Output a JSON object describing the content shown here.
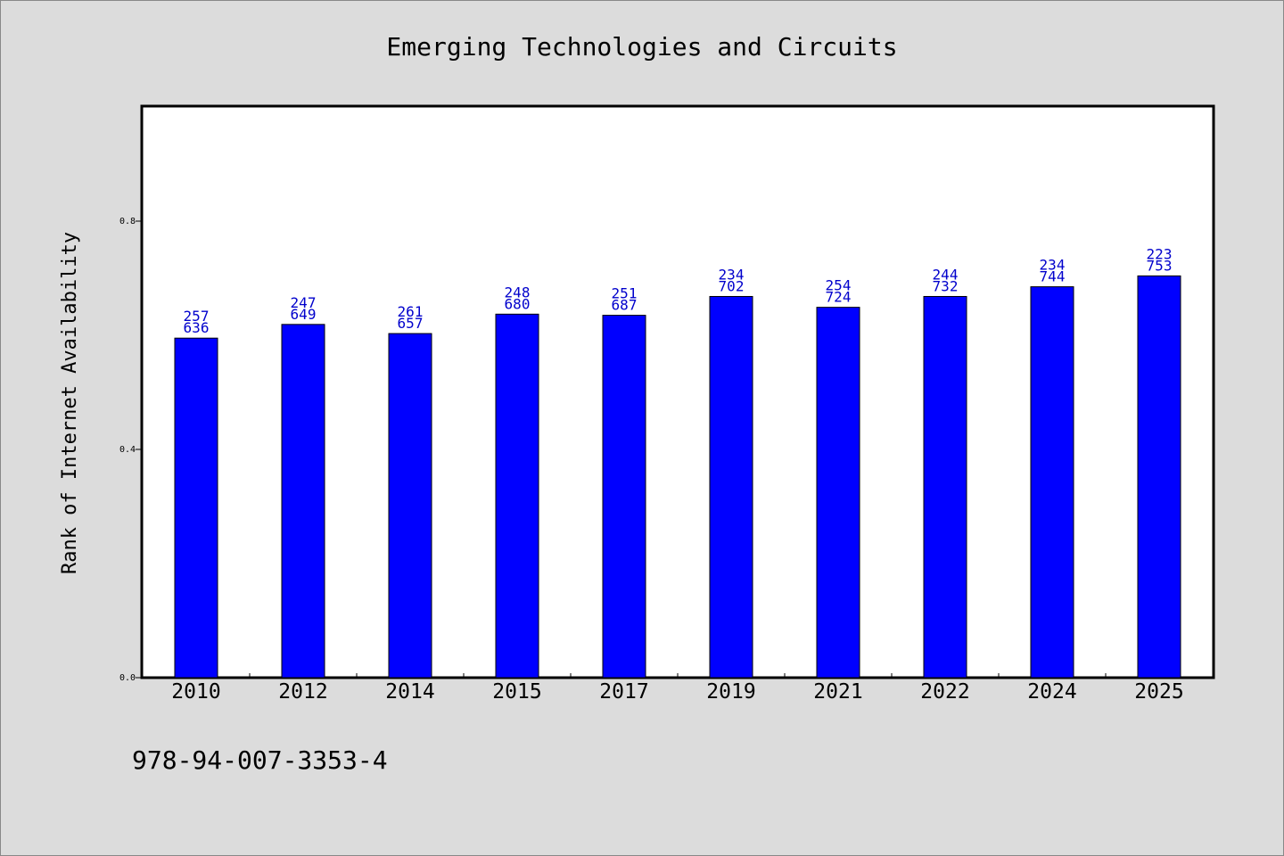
{
  "chart_data": {
    "type": "bar",
    "title": "Emerging Technologies and Circuits",
    "xlabel": "",
    "ylabel": "Rank of Internet Availability",
    "categories": [
      "2010",
      "2012",
      "2014",
      "2015",
      "2017",
      "2019",
      "2021",
      "2022",
      "2024",
      "2025"
    ],
    "values": [
      0.595,
      0.619,
      0.603,
      0.637,
      0.635,
      0.668,
      0.649,
      0.668,
      0.685,
      0.704
    ],
    "label_top": [
      "257",
      "247",
      "261",
      "248",
      "251",
      "234",
      "254",
      "244",
      "234",
      "223"
    ],
    "label_bottom": [
      "636",
      "649",
      "657",
      "680",
      "687",
      "702",
      "724",
      "732",
      "744",
      "753"
    ],
    "ylim": [
      0,
      1.0
    ],
    "yticks": [
      0.0,
      0.4,
      0.8
    ],
    "ytick_labels": [
      "0.0",
      "0.4",
      "0.8"
    ],
    "bar_color": "#0000ff",
    "label_color": "#0000cc",
    "grid": false,
    "legend": "none"
  },
  "footer": {
    "isbn": "978-94-007-3353-4"
  }
}
